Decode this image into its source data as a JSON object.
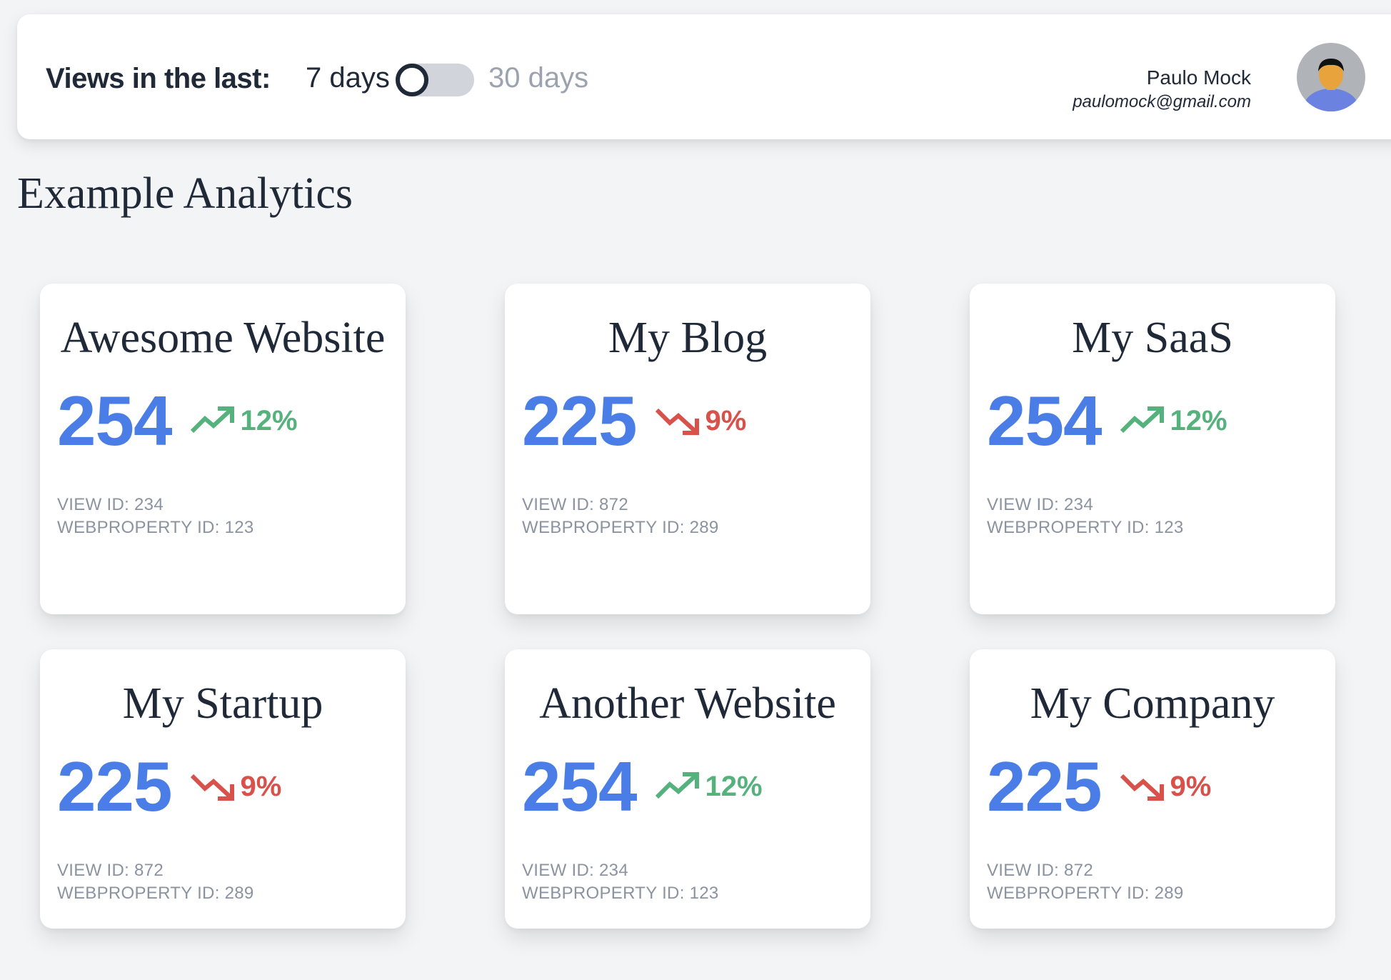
{
  "header": {
    "views_label": "Views in the last:",
    "option_7": "7 days",
    "option_30": "30 days",
    "toggle_state": "7 days",
    "user": {
      "name": "Paulo Mock",
      "email": "paulomock@gmail.com"
    }
  },
  "page": {
    "title": "Example Analytics"
  },
  "colors": {
    "value_blue": "#4a7ee6",
    "trend_up": "#55b27d",
    "trend_down": "#d9514b"
  },
  "cards": [
    {
      "title": "Awesome Website",
      "value": "254",
      "trend": "up",
      "trend_icon": "trending-up-icon",
      "change": "12%",
      "view_id": "VIEW ID: 234",
      "webproperty_id": "WEBPROPERTY ID: 123"
    },
    {
      "title": "My Blog",
      "value": "225",
      "trend": "down",
      "trend_icon": "trending-down-icon",
      "change": "9%",
      "view_id": "VIEW ID: 872",
      "webproperty_id": "WEBPROPERTY ID: 289"
    },
    {
      "title": "My SaaS",
      "value": "254",
      "trend": "up",
      "trend_icon": "trending-up-icon",
      "change": "12%",
      "view_id": "VIEW ID: 234",
      "webproperty_id": "WEBPROPERTY ID: 123"
    },
    {
      "title": "My Startup",
      "value": "225",
      "trend": "down",
      "trend_icon": "trending-down-icon",
      "change": "9%",
      "view_id": "VIEW ID: 872",
      "webproperty_id": "WEBPROPERTY ID: 289"
    },
    {
      "title": "Another Website",
      "value": "254",
      "trend": "up",
      "trend_icon": "trending-up-icon",
      "change": "12%",
      "view_id": "VIEW ID: 234",
      "webproperty_id": "WEBPROPERTY ID: 123"
    },
    {
      "title": "My Company",
      "value": "225",
      "trend": "down",
      "trend_icon": "trending-down-icon",
      "change": "9%",
      "view_id": "VIEW ID: 872",
      "webproperty_id": "WEBPROPERTY ID: 289"
    }
  ]
}
